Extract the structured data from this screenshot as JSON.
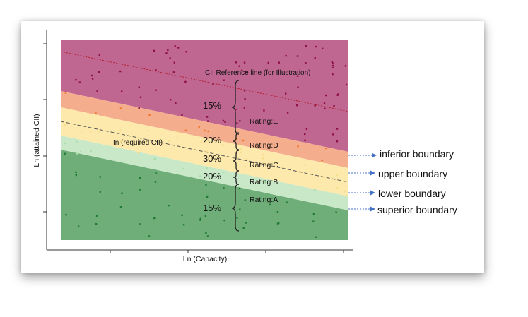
{
  "chart_data": {
    "type": "scatter",
    "xlabel": "Ln (Capacity)",
    "ylabel": "Ln (attained CII)",
    "bands": [
      {
        "name": "Rating:E",
        "color": "#c06791"
      },
      {
        "name": "Rating:D",
        "color": "#f4ae8d"
      },
      {
        "name": "Rating:C",
        "color": "#fde9ac"
      },
      {
        "name": "Rating:B",
        "color": "#c8e8c7"
      },
      {
        "name": "Rating:A",
        "color": "#6fae79"
      }
    ],
    "percentages": [
      "15%",
      "20%",
      "30%",
      "20%",
      "15%"
    ],
    "reference_line_label": "CII Reference line (for Illustration)",
    "required_line_label": "In (required CII)",
    "boundaries": [
      "inferior boundary",
      "upper boundary",
      "lower boundary",
      "superior boundary"
    ],
    "colors": {
      "point_e": "#8e1245",
      "point_d": "#f0752f",
      "point_c": "#f6dd8d",
      "point_b": "#a8dca8",
      "point_a": "#217a33",
      "arrow": "#4472c4",
      "reference_line": "#b31b2c"
    }
  }
}
